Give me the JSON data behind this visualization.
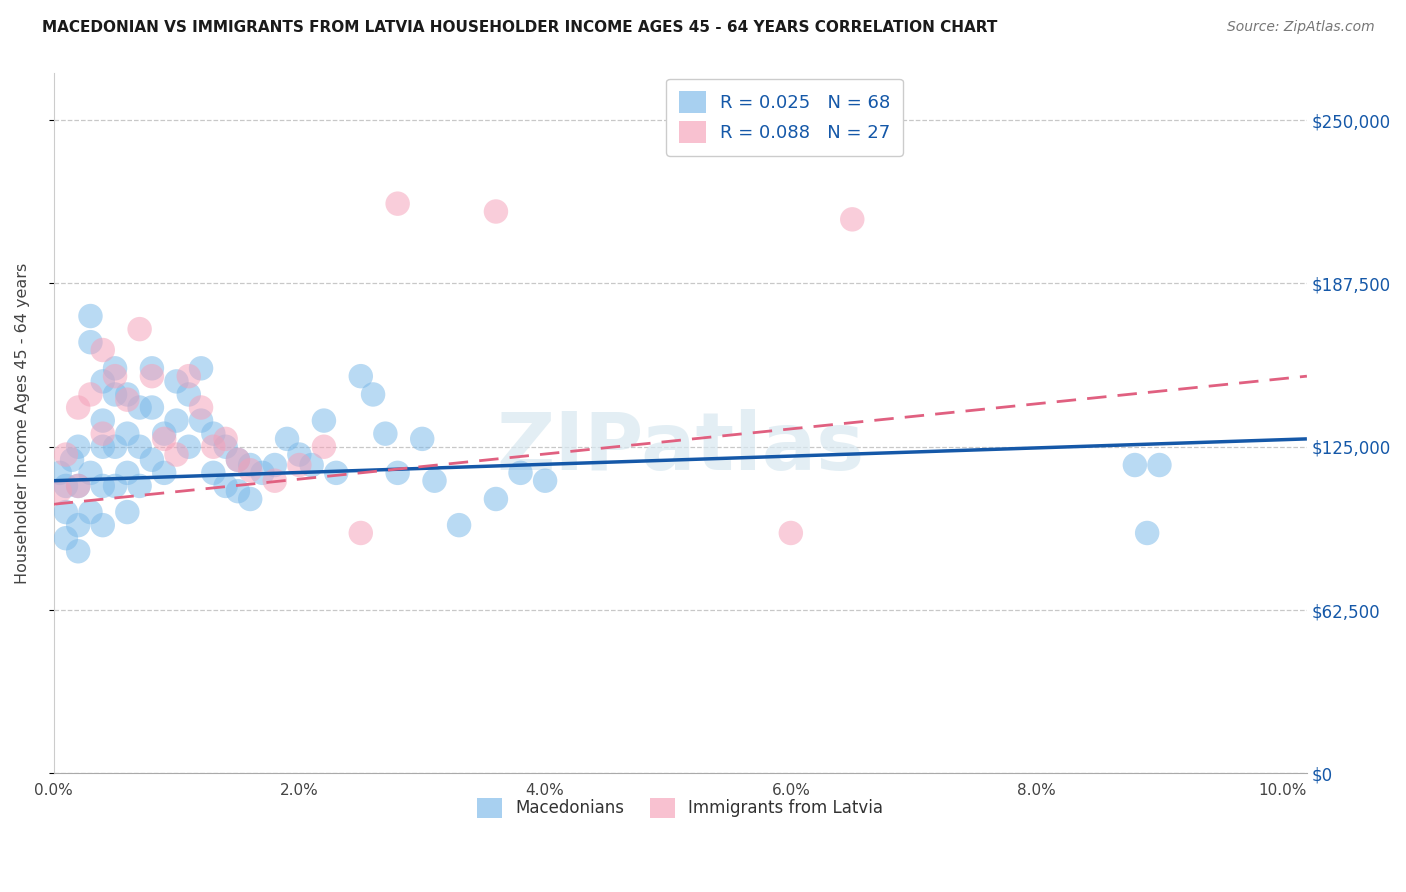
{
  "title": "MACEDONIAN VS IMMIGRANTS FROM LATVIA HOUSEHOLDER INCOME AGES 45 - 64 YEARS CORRELATION CHART",
  "source": "Source: ZipAtlas.com",
  "ylabel": "Householder Income Ages 45 - 64 years",
  "ytick_labels": [
    "$0",
    "$62,500",
    "$125,000",
    "$187,500",
    "$250,000"
  ],
  "ytick_vals": [
    0,
    62500,
    125000,
    187500,
    250000
  ],
  "xtick_labels": [
    "0.0%",
    "2.0%",
    "4.0%",
    "6.0%",
    "8.0%",
    "10.0%"
  ],
  "xtick_vals": [
    0.0,
    0.02,
    0.04,
    0.06,
    0.08,
    0.1
  ],
  "xlim": [
    0.0,
    0.102
  ],
  "ylim": [
    0,
    268000
  ],
  "macedonian_color": "#7ab8e8",
  "latvian_color": "#f5a0b8",
  "line_blue": "#1558a8",
  "line_pink": "#e06080",
  "legend1_label": "R = 0.025   N = 68",
  "legend2_label": "R = 0.088   N = 27",
  "legend_text_color": "#1558a8",
  "watermark": "ZIPatlas",
  "bottom_legend": [
    "Macedonians",
    "Immigrants from Latvia"
  ],
  "macedonian_x": [
    0.0005,
    0.001,
    0.001,
    0.001,
    0.0015,
    0.002,
    0.002,
    0.002,
    0.002,
    0.003,
    0.003,
    0.003,
    0.003,
    0.004,
    0.004,
    0.004,
    0.004,
    0.004,
    0.005,
    0.005,
    0.005,
    0.005,
    0.006,
    0.006,
    0.006,
    0.006,
    0.007,
    0.007,
    0.007,
    0.008,
    0.008,
    0.008,
    0.009,
    0.009,
    0.01,
    0.01,
    0.011,
    0.011,
    0.012,
    0.012,
    0.013,
    0.013,
    0.014,
    0.014,
    0.015,
    0.015,
    0.016,
    0.016,
    0.017,
    0.018,
    0.019,
    0.02,
    0.021,
    0.022,
    0.023,
    0.025,
    0.026,
    0.027,
    0.028,
    0.03,
    0.031,
    0.033,
    0.036,
    0.038,
    0.04,
    0.088,
    0.089,
    0.09
  ],
  "macedonian_y": [
    115000,
    110000,
    100000,
    90000,
    120000,
    125000,
    110000,
    95000,
    85000,
    175000,
    165000,
    115000,
    100000,
    150000,
    135000,
    125000,
    110000,
    95000,
    155000,
    145000,
    125000,
    110000,
    145000,
    130000,
    115000,
    100000,
    140000,
    125000,
    110000,
    155000,
    140000,
    120000,
    130000,
    115000,
    150000,
    135000,
    145000,
    125000,
    155000,
    135000,
    130000,
    115000,
    125000,
    110000,
    120000,
    108000,
    118000,
    105000,
    115000,
    118000,
    128000,
    122000,
    118000,
    135000,
    115000,
    152000,
    145000,
    130000,
    115000,
    128000,
    112000,
    95000,
    105000,
    115000,
    112000,
    118000,
    92000,
    118000
  ],
  "latvian_x": [
    0.0005,
    0.001,
    0.002,
    0.002,
    0.003,
    0.004,
    0.004,
    0.005,
    0.006,
    0.007,
    0.008,
    0.009,
    0.01,
    0.011,
    0.012,
    0.013,
    0.014,
    0.015,
    0.016,
    0.018,
    0.02,
    0.022,
    0.025,
    0.028,
    0.036,
    0.06,
    0.065
  ],
  "latvian_y": [
    108000,
    122000,
    140000,
    110000,
    145000,
    162000,
    130000,
    152000,
    143000,
    170000,
    152000,
    128000,
    122000,
    152000,
    140000,
    125000,
    128000,
    120000,
    116000,
    112000,
    118000,
    125000,
    92000,
    218000,
    215000,
    92000,
    212000
  ],
  "mac_line_x": [
    0.0,
    0.102
  ],
  "mac_line_y": [
    112000,
    128000
  ],
  "lat_line_x": [
    0.0,
    0.102
  ],
  "lat_line_y": [
    103000,
    152000
  ]
}
